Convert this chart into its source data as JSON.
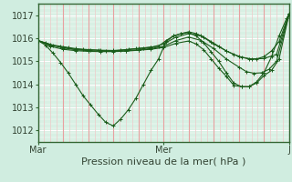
{
  "title": "Pression niveau de la mer( hPa )",
  "ylim": [
    1011.5,
    1017.5
  ],
  "yticks": [
    1012,
    1013,
    1014,
    1015,
    1016,
    1017
  ],
  "xtick_labels": [
    "Mar",
    "Mer",
    "J"
  ],
  "xtick_positions": [
    0.0,
    0.5,
    1.0
  ],
  "bg_color": "#d0ede0",
  "plot_bg_color": "#d8f0e4",
  "grid_color_h": "#ffffff",
  "grid_color_v_major": "#e8a0a0",
  "grid_color_v_minor": "#f0c8c8",
  "line_color": "#1a5c1a",
  "lines": [
    [
      0.0,
      1015.9,
      0.03,
      1015.7,
      0.06,
      1015.35,
      0.09,
      1014.95,
      0.12,
      1014.5,
      0.15,
      1014.0,
      0.18,
      1013.5,
      0.21,
      1013.1,
      0.24,
      1012.7,
      0.27,
      1012.35,
      0.3,
      1012.2,
      0.33,
      1012.5,
      0.36,
      1012.9,
      0.39,
      1013.4,
      0.42,
      1014.0,
      0.45,
      1014.6,
      0.48,
      1015.1,
      0.51,
      1015.85,
      0.54,
      1016.1,
      0.57,
      1016.2,
      0.6,
      1016.25,
      0.63,
      1016.1,
      0.66,
      1015.8,
      0.69,
      1015.4,
      0.72,
      1015.0,
      0.75,
      1014.5,
      0.78,
      1014.05,
      0.81,
      1013.9,
      0.84,
      1013.9,
      0.87,
      1014.1,
      0.9,
      1014.5,
      0.93,
      1015.2,
      0.96,
      1016.1,
      0.99,
      1016.85,
      1.0,
      1017.05
    ],
    [
      0.0,
      1015.9,
      0.03,
      1015.8,
      0.06,
      1015.7,
      0.09,
      1015.65,
      0.12,
      1015.6,
      0.15,
      1015.55,
      0.18,
      1015.52,
      0.21,
      1015.5,
      0.24,
      1015.48,
      0.27,
      1015.45,
      0.3,
      1015.45,
      0.33,
      1015.48,
      0.36,
      1015.52,
      0.39,
      1015.55,
      0.42,
      1015.58,
      0.45,
      1015.62,
      0.48,
      1015.65,
      0.51,
      1015.9,
      0.54,
      1016.1,
      0.57,
      1016.2,
      0.6,
      1016.28,
      0.63,
      1016.2,
      0.66,
      1016.05,
      0.69,
      1015.85,
      0.72,
      1015.65,
      0.75,
      1015.45,
      0.78,
      1015.3,
      0.81,
      1015.18,
      0.84,
      1015.1,
      0.87,
      1015.1,
      0.9,
      1015.2,
      0.93,
      1015.45,
      0.96,
      1015.85,
      1.0,
      1017.05
    ],
    [
      0.0,
      1015.9,
      0.05,
      1015.7,
      0.1,
      1015.6,
      0.15,
      1015.52,
      0.2,
      1015.5,
      0.25,
      1015.48,
      0.3,
      1015.47,
      0.35,
      1015.5,
      0.4,
      1015.55,
      0.45,
      1015.6,
      0.5,
      1015.75,
      0.55,
      1016.05,
      0.6,
      1016.2,
      0.65,
      1016.1,
      0.7,
      1015.75,
      0.75,
      1015.45,
      0.8,
      1015.2,
      0.85,
      1015.1,
      0.9,
      1015.12,
      0.95,
      1015.3,
      1.0,
      1017.05
    ],
    [
      0.0,
      1015.9,
      0.05,
      1015.72,
      0.1,
      1015.58,
      0.15,
      1015.5,
      0.2,
      1015.46,
      0.25,
      1015.44,
      0.3,
      1015.43,
      0.35,
      1015.46,
      0.4,
      1015.5,
      0.45,
      1015.55,
      0.5,
      1015.65,
      0.55,
      1015.9,
      0.6,
      1016.05,
      0.65,
      1015.9,
      0.7,
      1015.55,
      0.75,
      1015.1,
      0.8,
      1014.75,
      0.83,
      1014.55,
      0.86,
      1014.48,
      0.89,
      1014.5,
      0.92,
      1014.65,
      0.95,
      1015.0,
      1.0,
      1017.05
    ],
    [
      0.0,
      1015.9,
      0.05,
      1015.65,
      0.1,
      1015.52,
      0.15,
      1015.46,
      0.2,
      1015.43,
      0.25,
      1015.42,
      0.3,
      1015.42,
      0.35,
      1015.44,
      0.4,
      1015.48,
      0.45,
      1015.52,
      0.5,
      1015.6,
      0.55,
      1015.78,
      0.6,
      1015.88,
      0.63,
      1015.75,
      0.66,
      1015.5,
      0.69,
      1015.1,
      0.72,
      1014.7,
      0.75,
      1014.35,
      0.78,
      1013.95,
      0.81,
      1013.9,
      0.84,
      1013.9,
      0.87,
      1014.05,
      0.9,
      1014.38,
      0.93,
      1014.6,
      0.96,
      1015.1,
      1.0,
      1017.05
    ]
  ],
  "n_major_vcols": 10,
  "n_minor_vcols": 40,
  "label_fontsize": 7,
  "title_fontsize": 8
}
